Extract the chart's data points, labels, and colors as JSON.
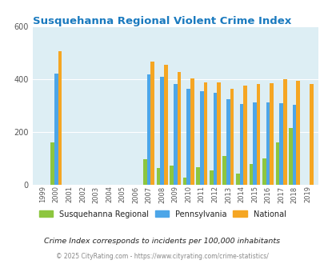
{
  "title": "Susquehanna Regional Violent Crime Index",
  "years": [
    1999,
    2000,
    2001,
    2002,
    2003,
    2004,
    2005,
    2006,
    2007,
    2008,
    2009,
    2010,
    2011,
    2012,
    2013,
    2014,
    2015,
    2016,
    2017,
    2018,
    2019
  ],
  "susquehanna": [
    0,
    160,
    0,
    0,
    0,
    0,
    0,
    0,
    97,
    63,
    72,
    28,
    68,
    55,
    108,
    42,
    80,
    100,
    160,
    215,
    0
  ],
  "pennsylvania": [
    0,
    420,
    0,
    0,
    0,
    0,
    0,
    0,
    418,
    408,
    382,
    365,
    355,
    347,
    323,
    305,
    313,
    313,
    308,
    303,
    0
  ],
  "national": [
    0,
    506,
    0,
    0,
    0,
    0,
    0,
    0,
    466,
    455,
    428,
    404,
    389,
    388,
    365,
    376,
    383,
    386,
    400,
    394,
    382
  ],
  "ylim": [
    0,
    600
  ],
  "yticks": [
    0,
    200,
    400,
    600
  ],
  "bar_width": 0.28,
  "color_susquehanna": "#8dc63f",
  "color_pennsylvania": "#4da6e8",
  "color_national": "#f5a623",
  "background_color": "#ddeef4",
  "label_susquehanna": "Susquehanna Regional",
  "label_pennsylvania": "Pennsylvania",
  "label_national": "National",
  "footnote1": "Crime Index corresponds to incidents per 100,000 inhabitants",
  "footnote2": "© 2025 CityRating.com - https://www.cityrating.com/crime-statistics/",
  "title_color": "#1a7abf",
  "footnote1_color": "#222222",
  "footnote2_color": "#888888"
}
